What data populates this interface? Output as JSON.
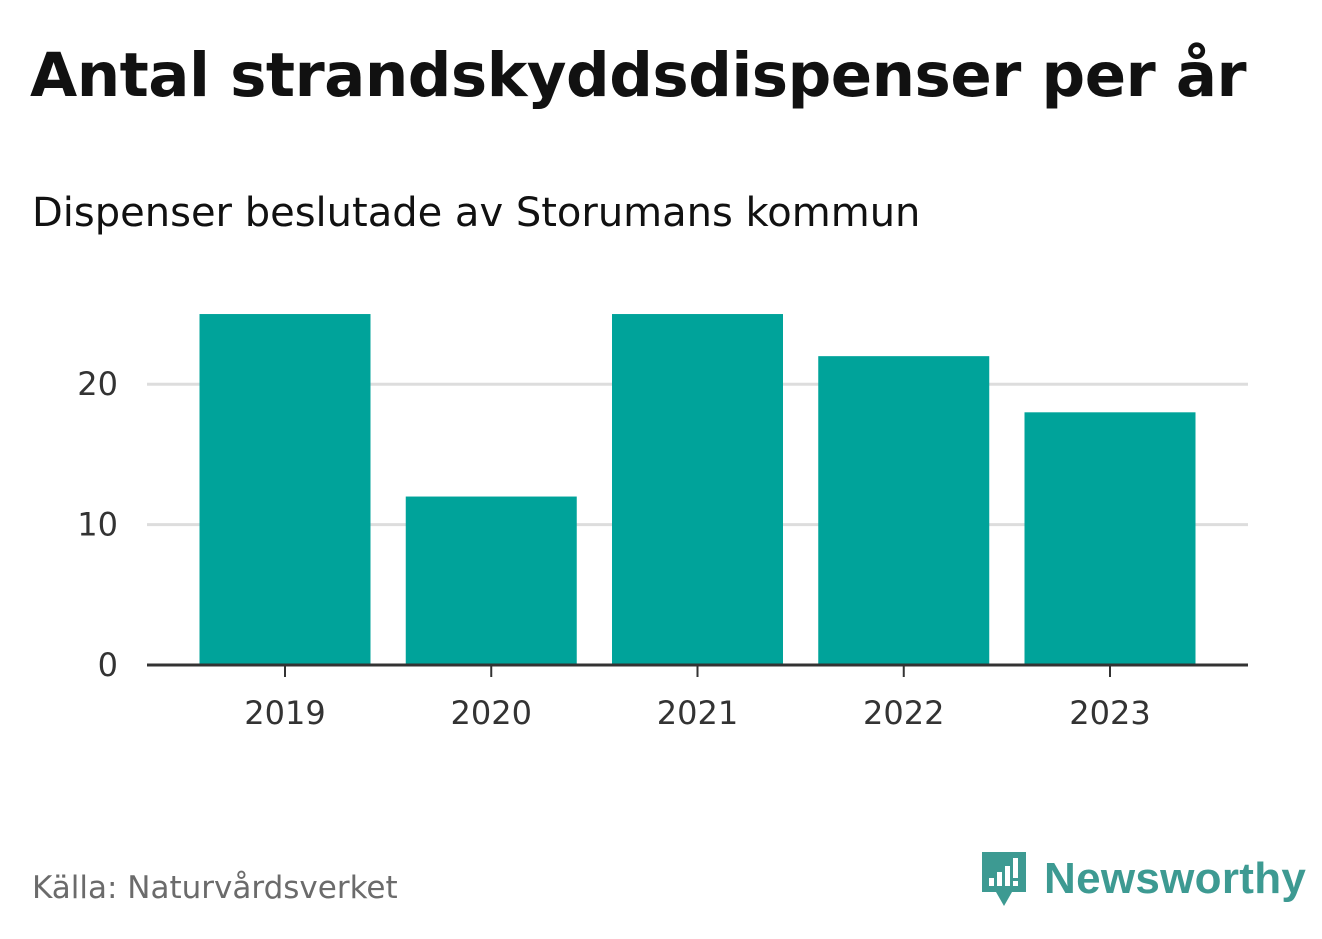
{
  "chart_data": {
    "type": "bar",
    "title": "Antal strandskyddsdispenser per år",
    "subtitle": "Dispenser beslutade av Storumans kommun",
    "categories": [
      "2019",
      "2020",
      "2021",
      "2022",
      "2023"
    ],
    "values": [
      25,
      12,
      25,
      22,
      18
    ],
    "ylim": [
      0,
      26
    ],
    "yticks": [
      0,
      10,
      20
    ],
    "ytick_labels": [
      "0",
      "10",
      "20"
    ],
    "xlabel": "",
    "ylabel": "",
    "grid": true,
    "bar_color": "#00a39a"
  },
  "footer": {
    "source": "Källa: Naturvårdsverket",
    "brand": "Newsworthy",
    "brand_icon": "newsworthy-logo-icon",
    "brand_color": "#3d9a92"
  }
}
